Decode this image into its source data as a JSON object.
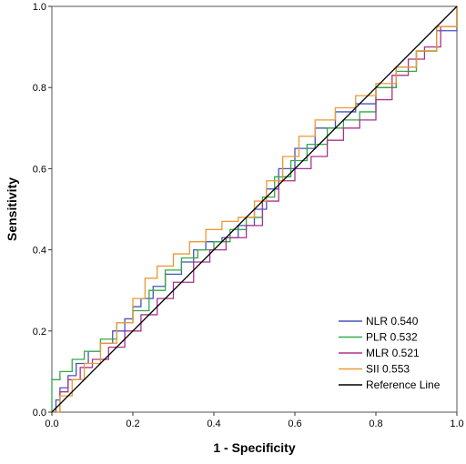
{
  "chart_data": {
    "type": "line",
    "title": "",
    "xlabel": "1 - Specificity",
    "ylabel": "Sensitivity",
    "xlim": [
      0,
      1
    ],
    "ylim": [
      0,
      1
    ],
    "x_ticks": [
      "0.0",
      "0.2",
      "0.4",
      "0.6",
      "0.8",
      "1.0"
    ],
    "y_ticks": [
      "0.0",
      "0.2",
      "0.4",
      "0.6",
      "0.8",
      "1.0"
    ],
    "grid": false,
    "legend_position": "bottom-right",
    "series": [
      {
        "name": "NLR 0.540",
        "color": "#4455bb",
        "points": [
          [
            0,
            0
          ],
          [
            0.01,
            0.03
          ],
          [
            0.02,
            0.06
          ],
          [
            0.04,
            0.09
          ],
          [
            0.06,
            0.12
          ],
          [
            0.09,
            0.15
          ],
          [
            0.12,
            0.17
          ],
          [
            0.15,
            0.2
          ],
          [
            0.18,
            0.23
          ],
          [
            0.2,
            0.26
          ],
          [
            0.22,
            0.28
          ],
          [
            0.25,
            0.31
          ],
          [
            0.28,
            0.34
          ],
          [
            0.32,
            0.37
          ],
          [
            0.35,
            0.4
          ],
          [
            0.38,
            0.42
          ],
          [
            0.42,
            0.43
          ],
          [
            0.46,
            0.46
          ],
          [
            0.5,
            0.5
          ],
          [
            0.53,
            0.55
          ],
          [
            0.56,
            0.6
          ],
          [
            0.6,
            0.65
          ],
          [
            0.65,
            0.7
          ],
          [
            0.7,
            0.74
          ],
          [
            0.75,
            0.76
          ],
          [
            0.8,
            0.8
          ],
          [
            0.85,
            0.85
          ],
          [
            0.9,
            0.89
          ],
          [
            0.95,
            0.94
          ],
          [
            1,
            1
          ]
        ]
      },
      {
        "name": "PLR 0.532",
        "color": "#33aa44",
        "points": [
          [
            0,
            0
          ],
          [
            0,
            0.08
          ],
          [
            0.02,
            0.1
          ],
          [
            0.05,
            0.13
          ],
          [
            0.08,
            0.15
          ],
          [
            0.12,
            0.18
          ],
          [
            0.16,
            0.22
          ],
          [
            0.2,
            0.25
          ],
          [
            0.24,
            0.3
          ],
          [
            0.28,
            0.35
          ],
          [
            0.32,
            0.38
          ],
          [
            0.36,
            0.4
          ],
          [
            0.4,
            0.42
          ],
          [
            0.44,
            0.45
          ],
          [
            0.48,
            0.48
          ],
          [
            0.52,
            0.53
          ],
          [
            0.55,
            0.58
          ],
          [
            0.59,
            0.62
          ],
          [
            0.63,
            0.66
          ],
          [
            0.68,
            0.7
          ],
          [
            0.72,
            0.72
          ],
          [
            0.76,
            0.74
          ],
          [
            0.8,
            0.8
          ],
          [
            0.85,
            0.84
          ],
          [
            0.9,
            0.89
          ],
          [
            0.95,
            0.95
          ],
          [
            1,
            1
          ]
        ]
      },
      {
        "name": "MLR 0.521",
        "color": "#aa3388",
        "points": [
          [
            0,
            0
          ],
          [
            0.02,
            0.05
          ],
          [
            0.04,
            0.08
          ],
          [
            0.07,
            0.11
          ],
          [
            0.1,
            0.13
          ],
          [
            0.14,
            0.16
          ],
          [
            0.18,
            0.2
          ],
          [
            0.22,
            0.24
          ],
          [
            0.26,
            0.28
          ],
          [
            0.3,
            0.32
          ],
          [
            0.35,
            0.37
          ],
          [
            0.39,
            0.4
          ],
          [
            0.43,
            0.43
          ],
          [
            0.48,
            0.46
          ],
          [
            0.52,
            0.52
          ],
          [
            0.56,
            0.57
          ],
          [
            0.6,
            0.6
          ],
          [
            0.64,
            0.63
          ],
          [
            0.68,
            0.67
          ],
          [
            0.72,
            0.7
          ],
          [
            0.76,
            0.72
          ],
          [
            0.8,
            0.77
          ],
          [
            0.84,
            0.83
          ],
          [
            0.88,
            0.87
          ],
          [
            0.92,
            0.9
          ],
          [
            0.96,
            0.95
          ],
          [
            1,
            1
          ]
        ]
      },
      {
        "name": "SII 0.553",
        "color": "#ee9933",
        "points": [
          [
            0,
            0
          ],
          [
            0.02,
            0.04
          ],
          [
            0.05,
            0.08
          ],
          [
            0.08,
            0.12
          ],
          [
            0.12,
            0.17
          ],
          [
            0.16,
            0.22
          ],
          [
            0.2,
            0.28
          ],
          [
            0.23,
            0.33
          ],
          [
            0.26,
            0.36
          ],
          [
            0.3,
            0.39
          ],
          [
            0.34,
            0.42
          ],
          [
            0.38,
            0.45
          ],
          [
            0.42,
            0.47
          ],
          [
            0.46,
            0.48
          ],
          [
            0.5,
            0.52
          ],
          [
            0.53,
            0.57
          ],
          [
            0.57,
            0.63
          ],
          [
            0.61,
            0.68
          ],
          [
            0.65,
            0.72
          ],
          [
            0.7,
            0.75
          ],
          [
            0.75,
            0.78
          ],
          [
            0.8,
            0.81
          ],
          [
            0.85,
            0.85
          ],
          [
            0.9,
            0.89
          ],
          [
            0.95,
            0.95
          ],
          [
            1,
            1
          ]
        ]
      },
      {
        "name": "Reference Line",
        "color": "#000000",
        "points": [
          [
            0,
            0
          ],
          [
            1,
            1
          ]
        ]
      }
    ]
  }
}
